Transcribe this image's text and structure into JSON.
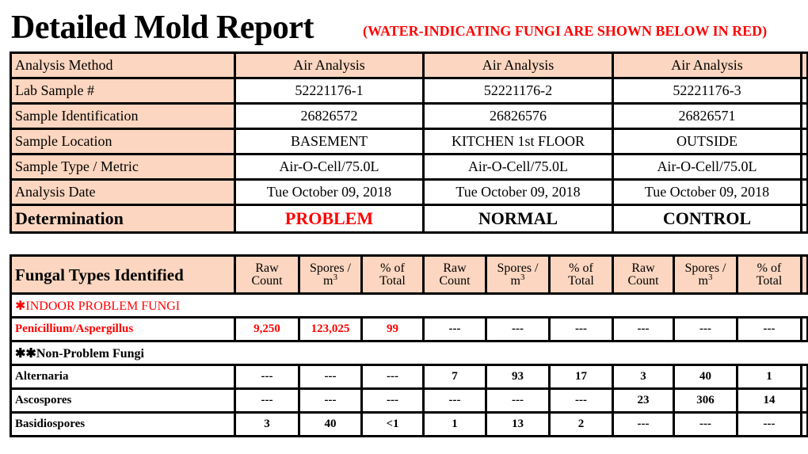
{
  "title": "Detailed Mold Report",
  "note": "(WATER-INDICATING FUNGI ARE SHOWN BELOW IN RED)",
  "summary": {
    "rows": [
      {
        "label": "Analysis Method",
        "values": [
          "Air Analysis",
          "Air Analysis",
          "Air Analysis"
        ]
      },
      {
        "label": "Lab Sample #",
        "values": [
          "52221176-1",
          "52221176-2",
          "52221176-3"
        ]
      },
      {
        "label": "Sample Identification",
        "values": [
          "26826572",
          "26826576",
          "26826571"
        ]
      },
      {
        "label": "Sample Location",
        "values": [
          "BASEMENT",
          "KITCHEN 1st FLOOR",
          "OUTSIDE"
        ]
      },
      {
        "label": "Sample Type / Metric",
        "values": [
          "Air-O-Cell/75.0L",
          "Air-O-Cell/75.0L",
          "Air-O-Cell/75.0L"
        ]
      },
      {
        "label": "Analysis Date",
        "values": [
          "Tue October 09, 2018",
          "Tue October 09, 2018",
          "Tue October 09, 2018"
        ]
      }
    ],
    "determination": {
      "label": "Determination",
      "values": [
        "PROBLEM",
        "NORMAL",
        "CONTROL"
      ]
    }
  },
  "fungi": {
    "header": {
      "label": "Fungal Types Identified",
      "raw_1": "Raw",
      "raw_2": "Count",
      "spores_1": "Spores /",
      "spores_2": "m",
      "spores_sup": "3",
      "pct_1": "% of",
      "pct_2": "Total"
    },
    "indoor_section": "✱INDOOR PROBLEM FUNGI",
    "non_problem_section": "✱✱Non-Problem Fungi",
    "rows": [
      {
        "name": "Penicillium/Aspergillus",
        "values": [
          "9,250",
          "123,025",
          "99",
          "---",
          "---",
          "---",
          "---",
          "---",
          "---"
        ]
      },
      {
        "name": "Alternaria",
        "values": [
          "---",
          "---",
          "---",
          "7",
          "93",
          "17",
          "3",
          "40",
          "1"
        ]
      },
      {
        "name": "Ascospores",
        "values": [
          "---",
          "---",
          "---",
          "---",
          "---",
          "---",
          "23",
          "306",
          "14"
        ]
      },
      {
        "name": "Basidiospores",
        "values": [
          "3",
          "40",
          "<1",
          "1",
          "13",
          "2",
          "---",
          "---",
          "---"
        ]
      }
    ]
  },
  "colors": {
    "header_bg": "#fcd6c0",
    "water_indicating": "#ff0000"
  }
}
